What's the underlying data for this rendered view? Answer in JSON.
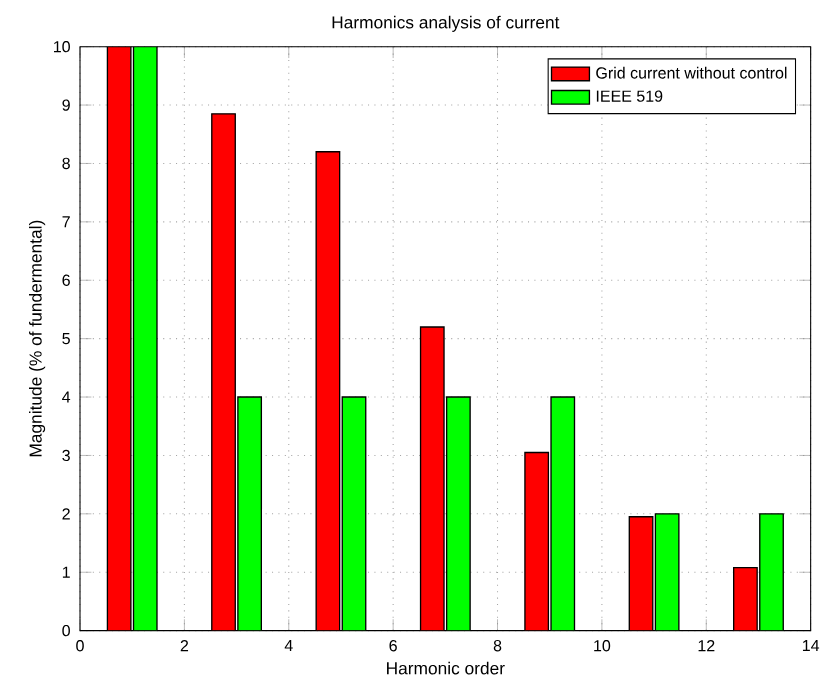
{
  "chart_data": {
    "type": "bar",
    "title": "Harmonics analysis of current",
    "xlabel": "Harmonic order",
    "ylabel": "Magnitude (% of fundermental)",
    "x": [
      1,
      3,
      5,
      7,
      9,
      11,
      13
    ],
    "series": [
      {
        "name": "Grid current without control",
        "color": "#ff0000",
        "values": [
          10,
          8.85,
          8.2,
          5.2,
          3.05,
          1.95,
          1.08
        ]
      },
      {
        "name": "IEEE 519",
        "color": "#00ff00",
        "values": [
          10,
          4,
          4,
          4,
          4,
          2,
          2
        ]
      }
    ],
    "xlim": [
      0,
      14
    ],
    "ylim": [
      0,
      10
    ],
    "xticks": [
      0,
      2,
      4,
      6,
      8,
      10,
      12,
      14
    ],
    "yticks": [
      0,
      1,
      2,
      3,
      4,
      5,
      6,
      7,
      8,
      9,
      10
    ],
    "grid": true,
    "legend": "top right"
  }
}
